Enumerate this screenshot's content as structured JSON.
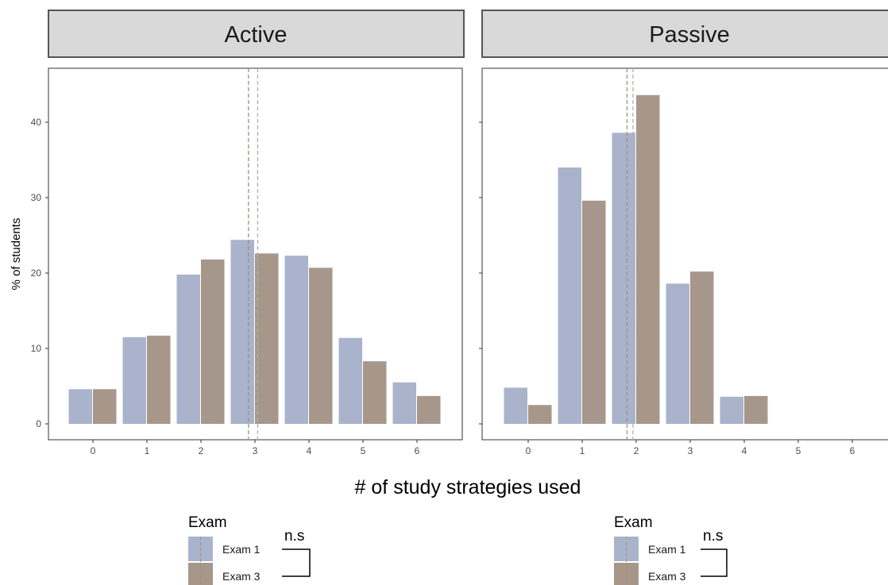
{
  "chart_data": {
    "type": "bar",
    "xlabel": "# of study strategies used",
    "ylabel": "% of students",
    "ylim": [
      -2,
      47
    ],
    "yticks": [
      0,
      10,
      20,
      30,
      40
    ],
    "categories": [
      "0",
      "1",
      "2",
      "3",
      "4",
      "5",
      "6"
    ],
    "grid": false,
    "facets": [
      {
        "strip": "Active",
        "series": [
          {
            "name": "Exam 1",
            "values": [
              4.6,
              11.5,
              19.8,
              24.4,
              22.3,
              11.4,
              5.5
            ]
          },
          {
            "name": "Exam 3",
            "values": [
              4.6,
              11.7,
              21.8,
              22.6,
              20.7,
              8.3,
              3.7
            ]
          }
        ],
        "mean_lines": [
          2.88,
          3.05
        ]
      },
      {
        "strip": "Passive",
        "series": [
          {
            "name": "Exam 1",
            "values": [
              4.8,
              34.0,
              38.6,
              18.6,
              3.6,
              0,
              0
            ]
          },
          {
            "name": "Exam 3",
            "values": [
              2.5,
              29.6,
              43.6,
              20.2,
              3.7,
              0,
              0
            ]
          }
        ],
        "mean_lines": [
          1.83,
          1.94
        ]
      }
    ],
    "legend": {
      "title": "Exam",
      "entries": [
        "Exam 1",
        "Exam 3"
      ],
      "annotation": "n.s",
      "placement": "bottom"
    },
    "colors": {
      "exam1": "#aab3cc",
      "exam3": "#a6978a",
      "strip_bg": "#d9d9d9",
      "mean_line_exam1": "#b0b0b0",
      "mean_line_exam3": "#9e9182"
    }
  }
}
